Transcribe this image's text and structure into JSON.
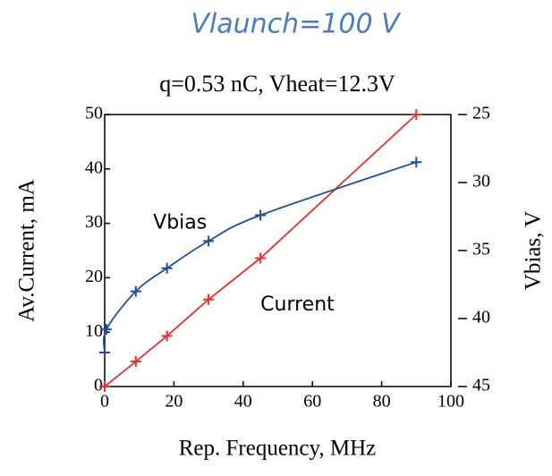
{
  "chart_data": {
    "type": "line",
    "title": "Vlaunch=100 V",
    "subtitle": "q=0.53 nC, Vheat=12.3V",
    "x_label": "Rep. Frequency, MHz",
    "y_label": "Av.Current, mA",
    "y2_label": "Vbias, V",
    "xlim": [
      0,
      100
    ],
    "xticks": [
      0,
      20,
      40,
      60,
      80,
      100
    ],
    "ylim": [
      0,
      50
    ],
    "yticks": [
      0,
      10,
      20,
      30,
      40,
      50
    ],
    "y2lim": [
      45,
      25
    ],
    "y2ticks": [
      25,
      30,
      35,
      40,
      45
    ],
    "series": [
      {
        "name": "Current",
        "color": "#e8302c",
        "x": [
          0,
          9,
          18,
          30,
          45,
          90
        ],
        "values": [
          0,
          4.6,
          9.3,
          16,
          23.6,
          50
        ]
      },
      {
        "name": "Vbias",
        "color": "#1f4f9c",
        "axis": "y2",
        "x": [
          0,
          0.5,
          9,
          18,
          30,
          45,
          90
        ],
        "values": [
          42.5,
          40.8,
          38,
          36.3,
          34.3,
          32.4,
          28.5
        ]
      }
    ],
    "annotations": [
      {
        "text": "Vbias",
        "x": 14,
        "y": 30
      },
      {
        "text": "Current",
        "x": 45,
        "y": 15
      }
    ]
  }
}
